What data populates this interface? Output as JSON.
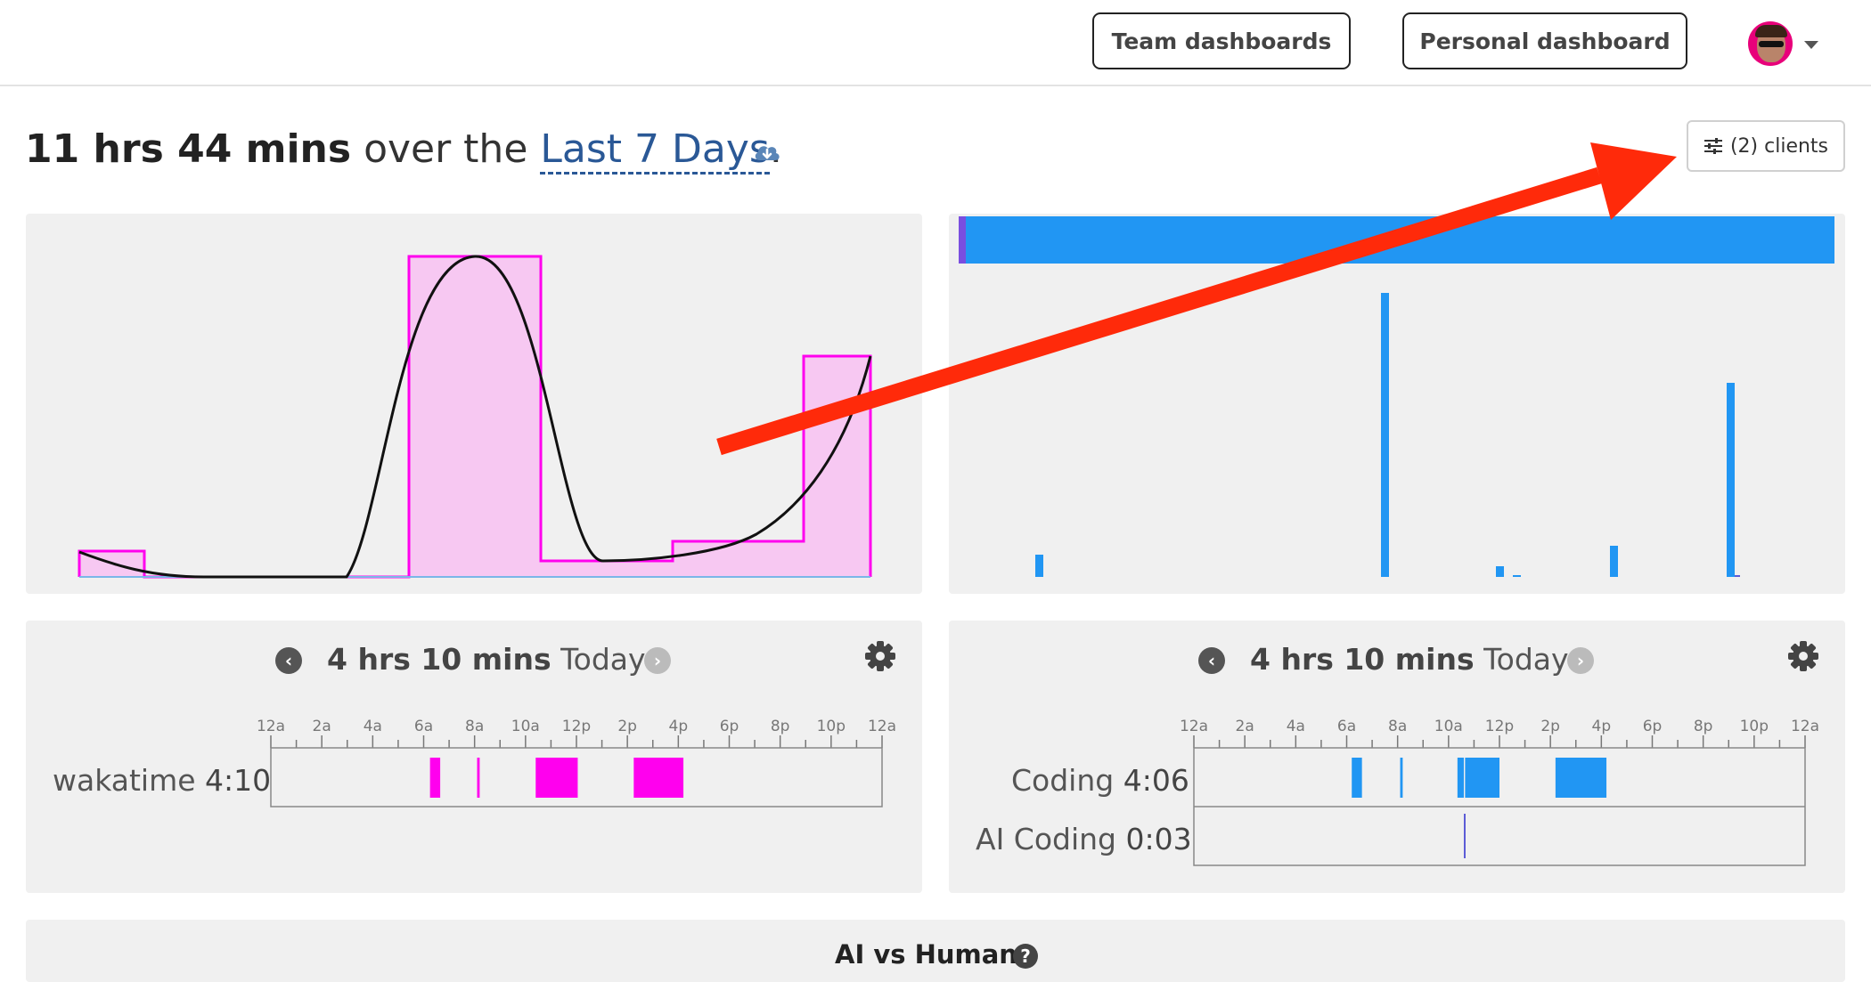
{
  "header": {
    "team_dashboards": "Team dashboards",
    "personal_dashboard": "Personal dashboard"
  },
  "summary": {
    "total": "11 hrs 44 mins",
    "over_the": "over the",
    "range": "Last 7 Days",
    "period": "."
  },
  "clients_button": {
    "label": "(2) clients"
  },
  "timeline_left": {
    "total": "4 hrs 10 mins",
    "day": "Today",
    "ticks": [
      "12a",
      "2a",
      "4a",
      "6a",
      "8a",
      "10a",
      "12p",
      "2p",
      "4p",
      "6p",
      "8p",
      "10p",
      "12a"
    ],
    "rows": [
      {
        "label": "wakatime",
        "time": "4:10",
        "color": "#ff00ee",
        "segments": [
          [
            6.25,
            6.65
          ],
          [
            8.1,
            8.2
          ],
          [
            10.4,
            12.05
          ],
          [
            14.25,
            16.2
          ]
        ]
      }
    ]
  },
  "timeline_right": {
    "total": "4 hrs 10 mins",
    "day": "Today",
    "ticks": [
      "12a",
      "2a",
      "4a",
      "6a",
      "8a",
      "10a",
      "12p",
      "2p",
      "4p",
      "6p",
      "8p",
      "10p",
      "12a"
    ],
    "rows": [
      {
        "label": "Coding",
        "time": "4:06",
        "color": "#2196f3",
        "segments": [
          [
            6.2,
            6.6
          ],
          [
            8.1,
            8.2
          ],
          [
            10.35,
            10.6
          ],
          [
            10.65,
            12.0
          ],
          [
            14.2,
            16.2
          ]
        ]
      },
      {
        "label": "AI Coding",
        "time": "0:03",
        "color": "#5b5bd6",
        "segments": [
          [
            10.6,
            10.67
          ]
        ]
      }
    ]
  },
  "colors": {
    "accent_pink": "#ff00ee",
    "accent_blue": "#2196f3",
    "arrow": "#ff2a0a"
  },
  "section": {
    "ai_vs_human": "AI vs Human"
  }
}
